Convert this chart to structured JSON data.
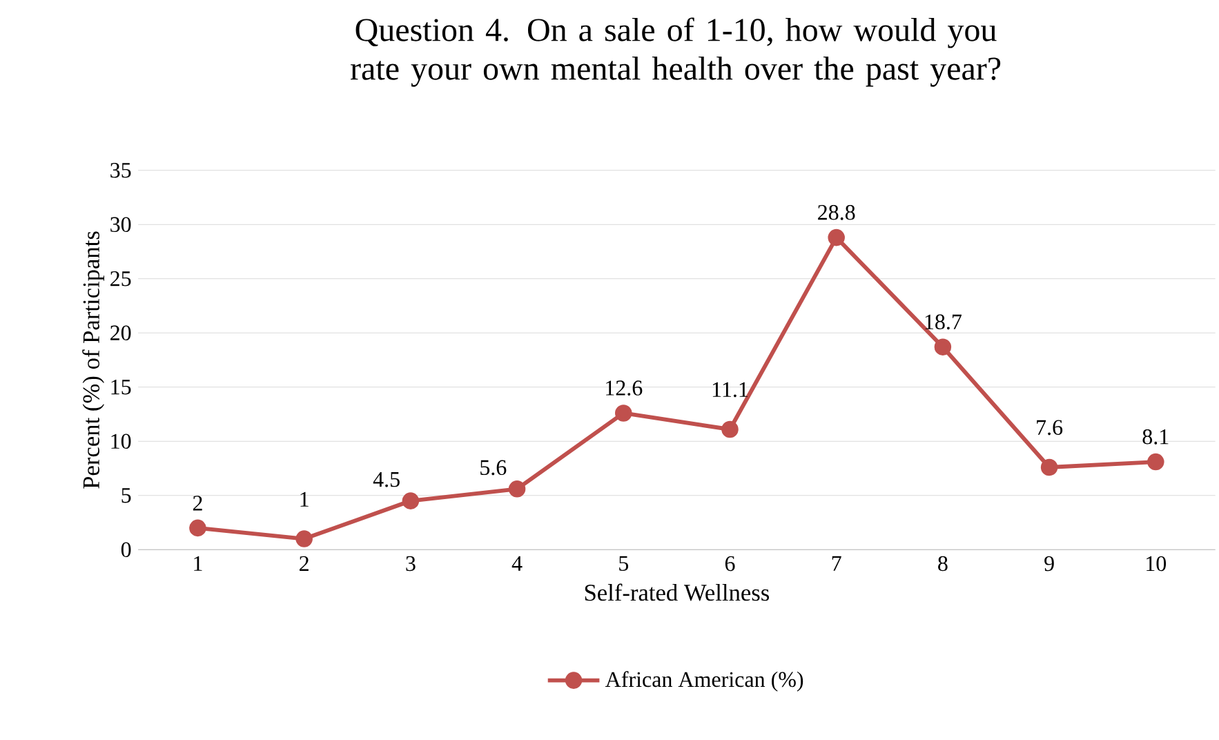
{
  "chart_data": {
    "type": "line",
    "title": "Question 4. On a sale of 1-10, how would you rate your own mental health over the past year?",
    "xlabel": "Self-rated Wellness",
    "ylabel": "Percent (%) of Participants",
    "categories": [
      "1",
      "2",
      "3",
      "4",
      "5",
      "6",
      "7",
      "8",
      "9",
      "10"
    ],
    "series": [
      {
        "name": "African American (%)",
        "color": "#c0504d",
        "values": [
          2,
          1,
          4.5,
          5.6,
          12.6,
          11.1,
          28.8,
          18.7,
          7.6,
          8.1
        ]
      }
    ],
    "ylim": [
      0,
      35
    ],
    "yticks": [
      0,
      5,
      10,
      15,
      20,
      25,
      30,
      35
    ],
    "grid": "y",
    "legend": "bottom",
    "marker": "circle",
    "line_style": "solid",
    "data_labels": true
  }
}
